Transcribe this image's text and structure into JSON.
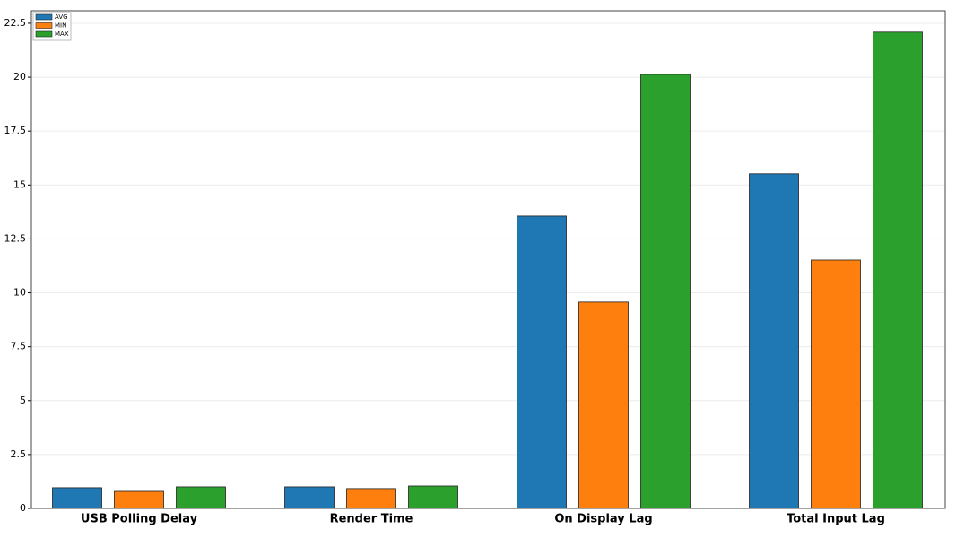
{
  "chart_data": {
    "type": "bar",
    "categories": [
      "USB Polling Delay",
      "Render Time",
      "On Display Lag",
      "Total Input Lag"
    ],
    "series": [
      {
        "name": "AVG",
        "color": "#1f77b4",
        "values": [
          0.96,
          1.0,
          13.56,
          15.52
        ]
      },
      {
        "name": "MIN",
        "color": "#ff7f0e",
        "values": [
          0.79,
          0.92,
          9.57,
          11.52
        ]
      },
      {
        "name": "MAX",
        "color": "#2ca02c",
        "values": [
          1.0,
          1.04,
          20.13,
          22.09
        ]
      }
    ],
    "ylim": [
      0,
      23.08
    ],
    "yticks": [
      0,
      2.5,
      5,
      7.5,
      10,
      12.5,
      15,
      17.5,
      20,
      22.5
    ],
    "grid": true,
    "legend": "upper left"
  }
}
